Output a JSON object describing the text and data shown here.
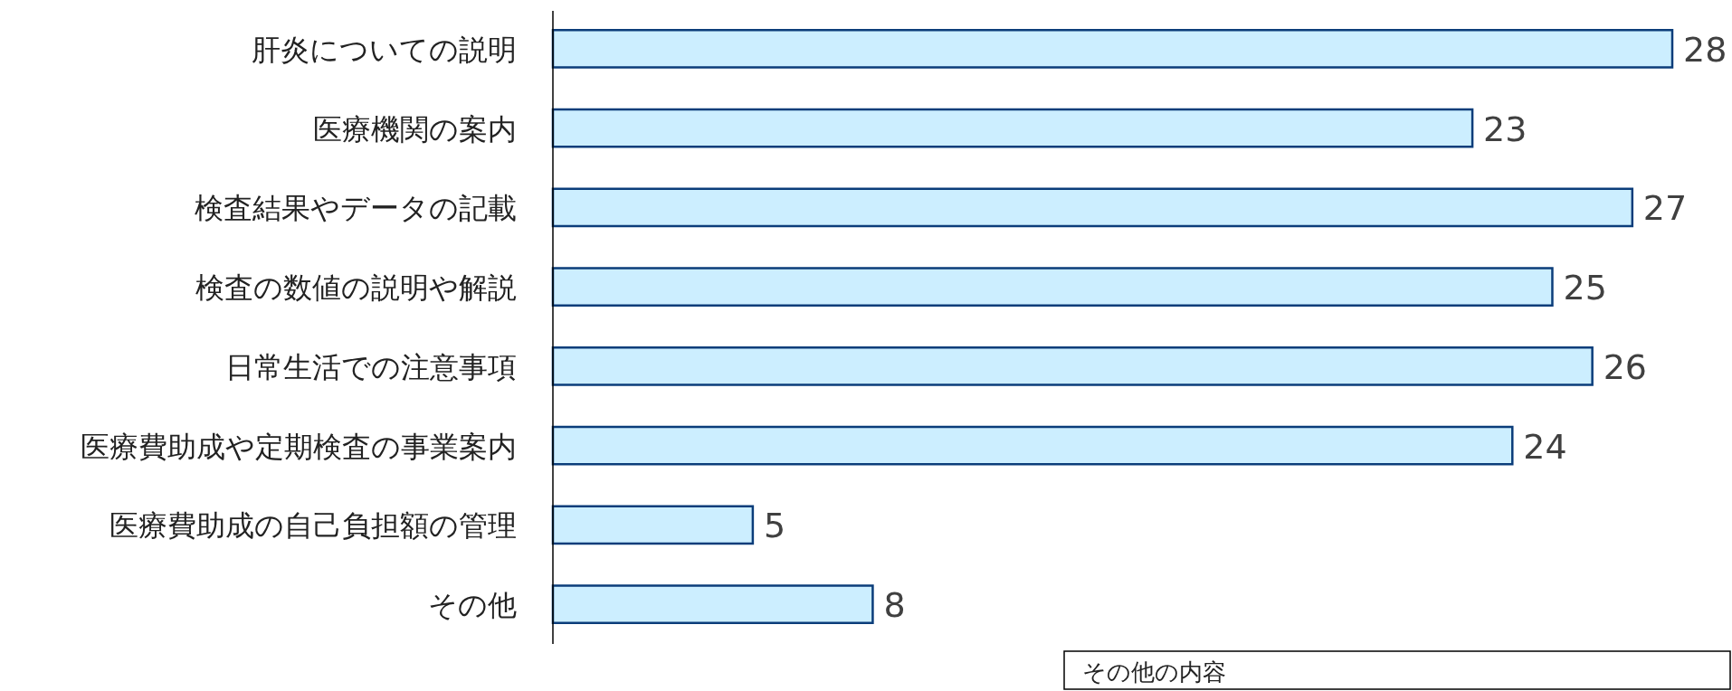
{
  "chart_data": {
    "type": "bar",
    "orientation": "horizontal",
    "categories": [
      "肝炎についての説明",
      "医療機関の案内",
      "検査結果やデータの記載",
      "検査の数値の説明や解説",
      "日常生活での注意事項",
      "医療費助成や定期検査の事業案内",
      "医療費助成の自己負担額の管理",
      "その他"
    ],
    "values": [
      28,
      23,
      27,
      25,
      26,
      24,
      5,
      8
    ],
    "color": "#cceeff",
    "data_labels": true,
    "annotations": [
      "その他の内容"
    ]
  }
}
